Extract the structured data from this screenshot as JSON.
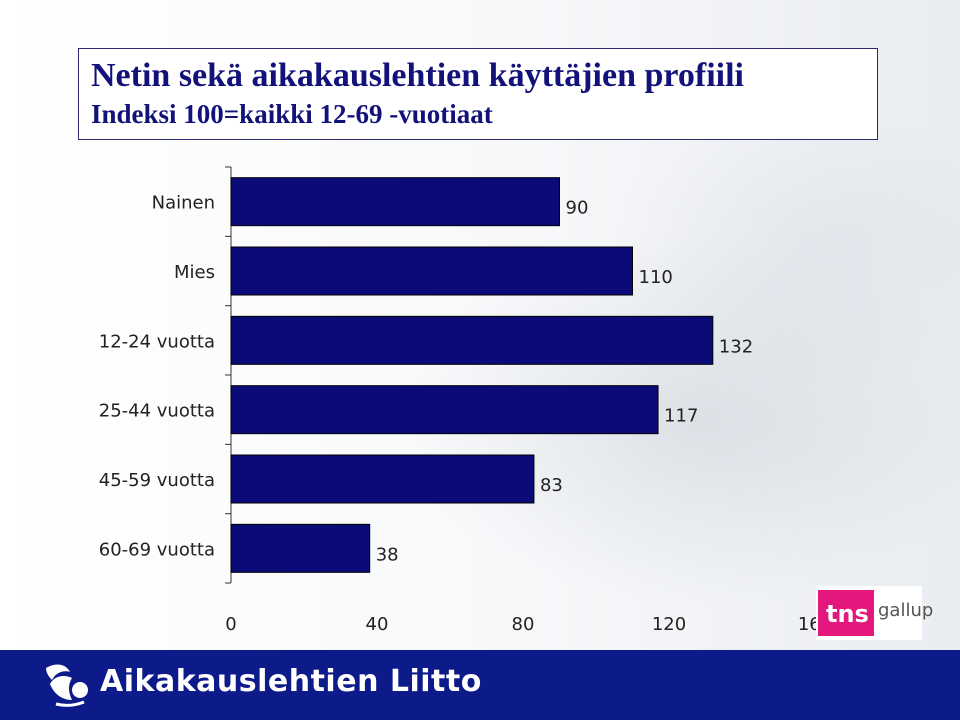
{
  "header": {
    "title": "Netin sekä aikakauslehtien käyttäjien profiili",
    "subtitle": "Indeksi 100=kaikki 12-69 -vuotiaat"
  },
  "footer": {
    "org_name": "Aikakauslehtien Liitto",
    "brand_color": "#0c1a8a"
  },
  "logo": {
    "tns": "tns",
    "gallup": "gallup",
    "tns_color": "#e4177c"
  },
  "chart_data": {
    "type": "bar",
    "orientation": "horizontal",
    "categories": [
      "Nainen",
      "Mies",
      "12-24 vuotta",
      "25-44 vuotta",
      "45-59 vuotta",
      "60-69 vuotta"
    ],
    "values": [
      90,
      110,
      132,
      117,
      83,
      38
    ],
    "value_labels": [
      "90",
      "110",
      "132",
      "117",
      "83",
      "38"
    ],
    "xlim": [
      0,
      160
    ],
    "xticks": [
      "0",
      "40",
      "80",
      "120",
      "160"
    ],
    "bar_color": "#0a0a78",
    "grid": false,
    "legend": "none"
  }
}
